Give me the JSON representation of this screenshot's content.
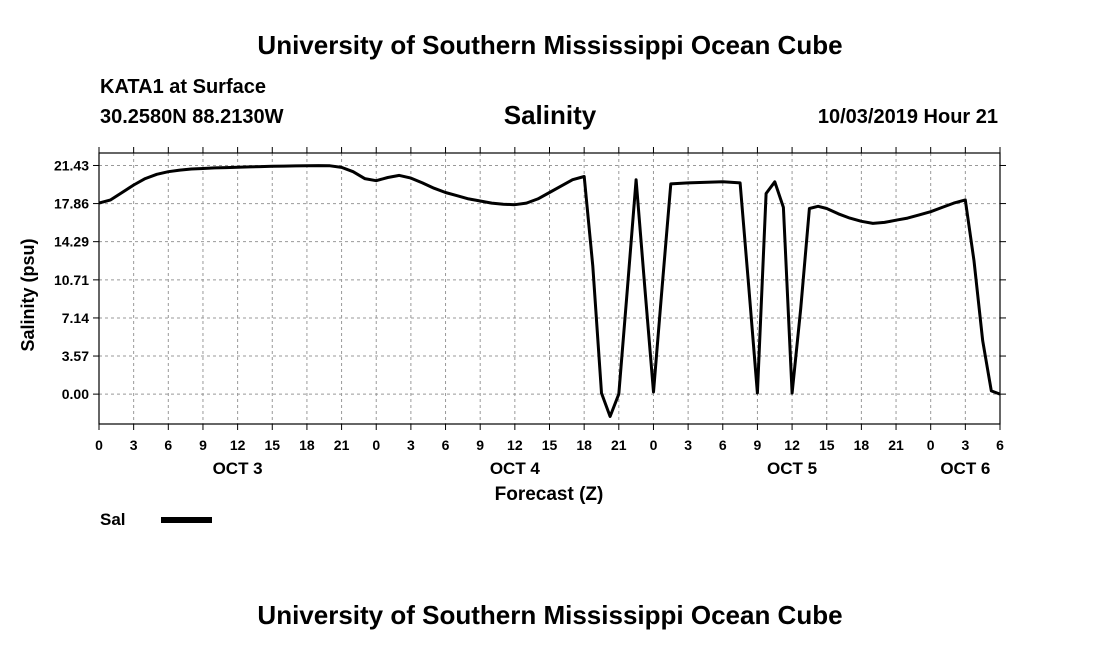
{
  "header": {
    "title": "University of Southern Mississippi Ocean Cube",
    "station": "KATA1 at Surface",
    "coords": "30.2580N 88.2130W",
    "chart_title": "Salinity",
    "datetime": "10/03/2019 Hour 21"
  },
  "footer": {
    "title": "University of Southern Mississippi Ocean Cube"
  },
  "legend": {
    "label": "Sal",
    "color": "#000000"
  },
  "chart_data": {
    "type": "line",
    "ylabel": "Salinity (psu)",
    "xlabel": "Forecast (Z)",
    "ylim": [
      -2.8,
      22.6
    ],
    "y_ticks": [
      0.0,
      3.57,
      7.14,
      10.71,
      14.29,
      17.86,
      21.43
    ],
    "y_tick_labels": [
      "0.00",
      "3.57",
      "7.14",
      "10.71",
      "14.29",
      "17.86",
      "21.43"
    ],
    "xlim": [
      0,
      78
    ],
    "x_ticks": [
      0,
      3,
      6,
      9,
      12,
      15,
      18,
      21,
      24,
      27,
      30,
      33,
      36,
      39,
      42,
      45,
      48,
      51,
      54,
      57,
      60,
      63,
      66,
      69,
      72,
      75,
      78
    ],
    "x_tick_labels": [
      "0",
      "3",
      "6",
      "9",
      "12",
      "15",
      "18",
      "21",
      "0",
      "3",
      "6",
      "9",
      "12",
      "15",
      "18",
      "21",
      "0",
      "3",
      "6",
      "9",
      "12",
      "15",
      "18",
      "21",
      "0",
      "3",
      "6"
    ],
    "day_labels": [
      {
        "x": 12,
        "label": "OCT 3"
      },
      {
        "x": 36,
        "label": "OCT 4"
      },
      {
        "x": 60,
        "label": "OCT 5"
      },
      {
        "x": 75,
        "label": "OCT 6"
      }
    ],
    "grid": true,
    "legend_position": "bottom-left",
    "series": [
      {
        "name": "Sal",
        "color": "#000000",
        "x": [
          0,
          1,
          2,
          3,
          4,
          5,
          6,
          7,
          8,
          9,
          10,
          11,
          12,
          13,
          14,
          15,
          16,
          17,
          18,
          19,
          20,
          21,
          22,
          23,
          24,
          25,
          26,
          27,
          28,
          29,
          30,
          31,
          32,
          33,
          34,
          35,
          36,
          37,
          38,
          39,
          40,
          41,
          42,
          42.75,
          43.5,
          44.25,
          45,
          45.75,
          46.5,
          47.25,
          48,
          48.75,
          49.5,
          51,
          54,
          55.5,
          56.25,
          57,
          57.75,
          58.5,
          59.25,
          60,
          60.75,
          61.5,
          62.25,
          63,
          64,
          65,
          66,
          67,
          68,
          69,
          70,
          71,
          72,
          73,
          74,
          75,
          75.75,
          76.5,
          77.25,
          78
        ],
        "y": [
          17.9,
          18.2,
          18.9,
          19.6,
          20.2,
          20.6,
          20.85,
          21.0,
          21.1,
          21.15,
          21.2,
          21.23,
          21.27,
          21.3,
          21.33,
          21.35,
          21.37,
          21.39,
          21.41,
          21.42,
          21.4,
          21.25,
          20.85,
          20.2,
          20.0,
          20.3,
          20.5,
          20.25,
          19.8,
          19.3,
          18.9,
          18.6,
          18.3,
          18.1,
          17.9,
          17.8,
          17.75,
          17.9,
          18.3,
          18.9,
          19.5,
          20.1,
          20.4,
          12.0,
          0.1,
          -2.1,
          0.0,
          10.0,
          20.1,
          10.0,
          0.2,
          10.0,
          19.7,
          19.8,
          19.9,
          19.8,
          10.0,
          0.1,
          18.8,
          19.9,
          17.5,
          0.1,
          8.0,
          17.4,
          17.6,
          17.4,
          16.9,
          16.5,
          16.2,
          16.0,
          16.1,
          16.3,
          16.5,
          16.8,
          17.1,
          17.5,
          17.9,
          18.2,
          12.5,
          5.0,
          0.3,
          0.0
        ]
      }
    ]
  }
}
